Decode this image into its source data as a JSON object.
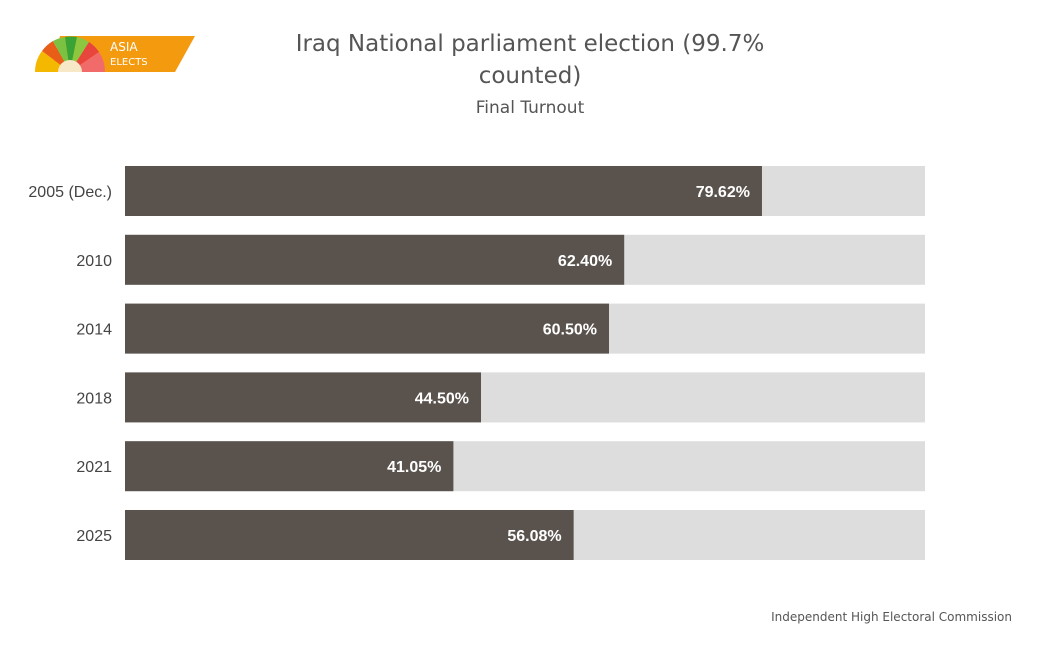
{
  "logo": {
    "line1": "ASIA",
    "line2": "ELECTS"
  },
  "colors": {
    "bar": "#5a534d",
    "track": "#dddddd",
    "label_text": "#ffffff",
    "axis_text": "#444444",
    "logo_orange": "#f39a0f"
  },
  "chart_data": {
    "type": "bar",
    "orientation": "horizontal",
    "stacked_with_remainder": true,
    "title": "Iraq National parliament election (99.7% counted)",
    "subtitle": "Final Turnout",
    "categories": [
      "2005 (Dec.)",
      "2010",
      "2014",
      "2018",
      "2021",
      "2025"
    ],
    "values": [
      79.62,
      62.4,
      60.5,
      44.5,
      41.05,
      56.08
    ],
    "data_labels": [
      "79.62%",
      "62.40%",
      "60.50%",
      "44.50%",
      "41.05%",
      "56.08%"
    ],
    "xlim": [
      0,
      100
    ],
    "xlabel": "",
    "ylabel": "",
    "grid": false,
    "legend": "none"
  },
  "source": "Independent High Electoral Commission"
}
